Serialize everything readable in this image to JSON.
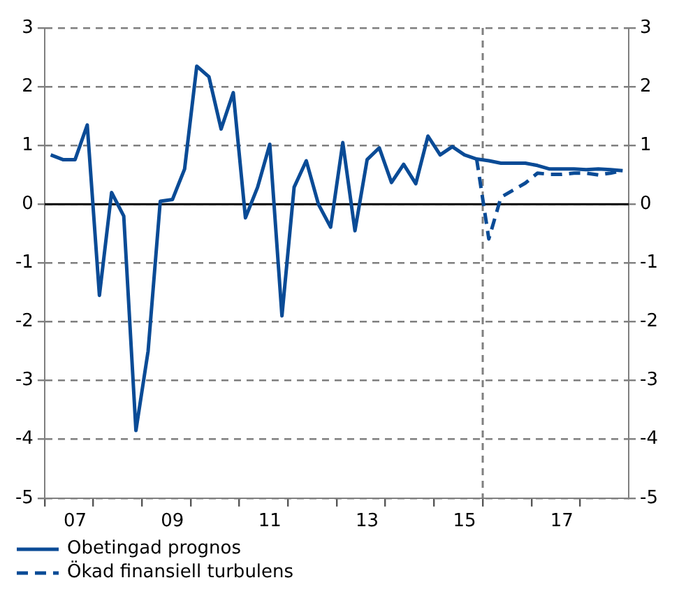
{
  "chart_data": {
    "type": "line",
    "categories": [
      null,
      null,
      "07",
      null,
      null,
      null,
      null,
      null,
      null,
      null,
      "09",
      null,
      null,
      null,
      null,
      null,
      null,
      null,
      "11",
      null,
      null,
      null,
      null,
      null,
      null,
      null,
      "13",
      null,
      null,
      null,
      null,
      null,
      null,
      null,
      "15",
      null,
      null,
      null,
      null,
      null,
      null,
      null,
      "17",
      null,
      null,
      null,
      null,
      null
    ],
    "series": [
      {
        "name": "Obetingad prognos",
        "color": "#0a4b96",
        "line_style": "solid",
        "values": [
          0.84,
          0.76,
          0.76,
          1.35,
          -1.55,
          0.2,
          -0.2,
          -3.85,
          -2.5,
          0.05,
          0.08,
          0.6,
          2.35,
          2.17,
          1.28,
          1.9,
          -0.23,
          0.29,
          1.02,
          -1.9,
          0.29,
          0.74,
          0.0,
          -0.39,
          1.05,
          -0.45,
          0.76,
          0.96,
          0.37,
          0.68,
          0.35,
          1.16,
          0.84,
          0.98,
          0.84,
          0.77,
          0.74,
          0.7,
          0.7,
          0.7,
          0.66,
          0.6,
          0.6,
          0.6,
          0.59,
          0.6,
          0.59,
          0.57
        ]
      },
      {
        "name": "Ökad finansiell turbulens",
        "color": "#0a4b96",
        "line_style": "dashed",
        "values": [
          null,
          null,
          null,
          null,
          null,
          null,
          null,
          null,
          null,
          null,
          null,
          null,
          null,
          null,
          null,
          null,
          null,
          null,
          null,
          null,
          null,
          null,
          null,
          null,
          null,
          null,
          null,
          null,
          null,
          null,
          null,
          null,
          null,
          null,
          null,
          0.77,
          -0.59,
          0.12,
          0.24,
          0.36,
          0.53,
          0.51,
          0.51,
          0.53,
          0.53,
          0.5,
          0.53,
          0.57
        ]
      }
    ],
    "ylim": [
      -5,
      3
    ],
    "yticks": [
      -5,
      -4,
      -3,
      -2,
      -1,
      0,
      1,
      2,
      3
    ],
    "y2lim": [
      -5,
      3
    ],
    "y2ticks": [
      -5,
      -4,
      -3,
      -2,
      -1,
      0,
      1,
      2,
      3
    ],
    "ref_lines": [
      {
        "axis": "y",
        "value": 0,
        "color": "#000000",
        "line_style": "solid"
      }
    ],
    "grid": "y",
    "legend": "bottom left",
    "marker": "none"
  }
}
